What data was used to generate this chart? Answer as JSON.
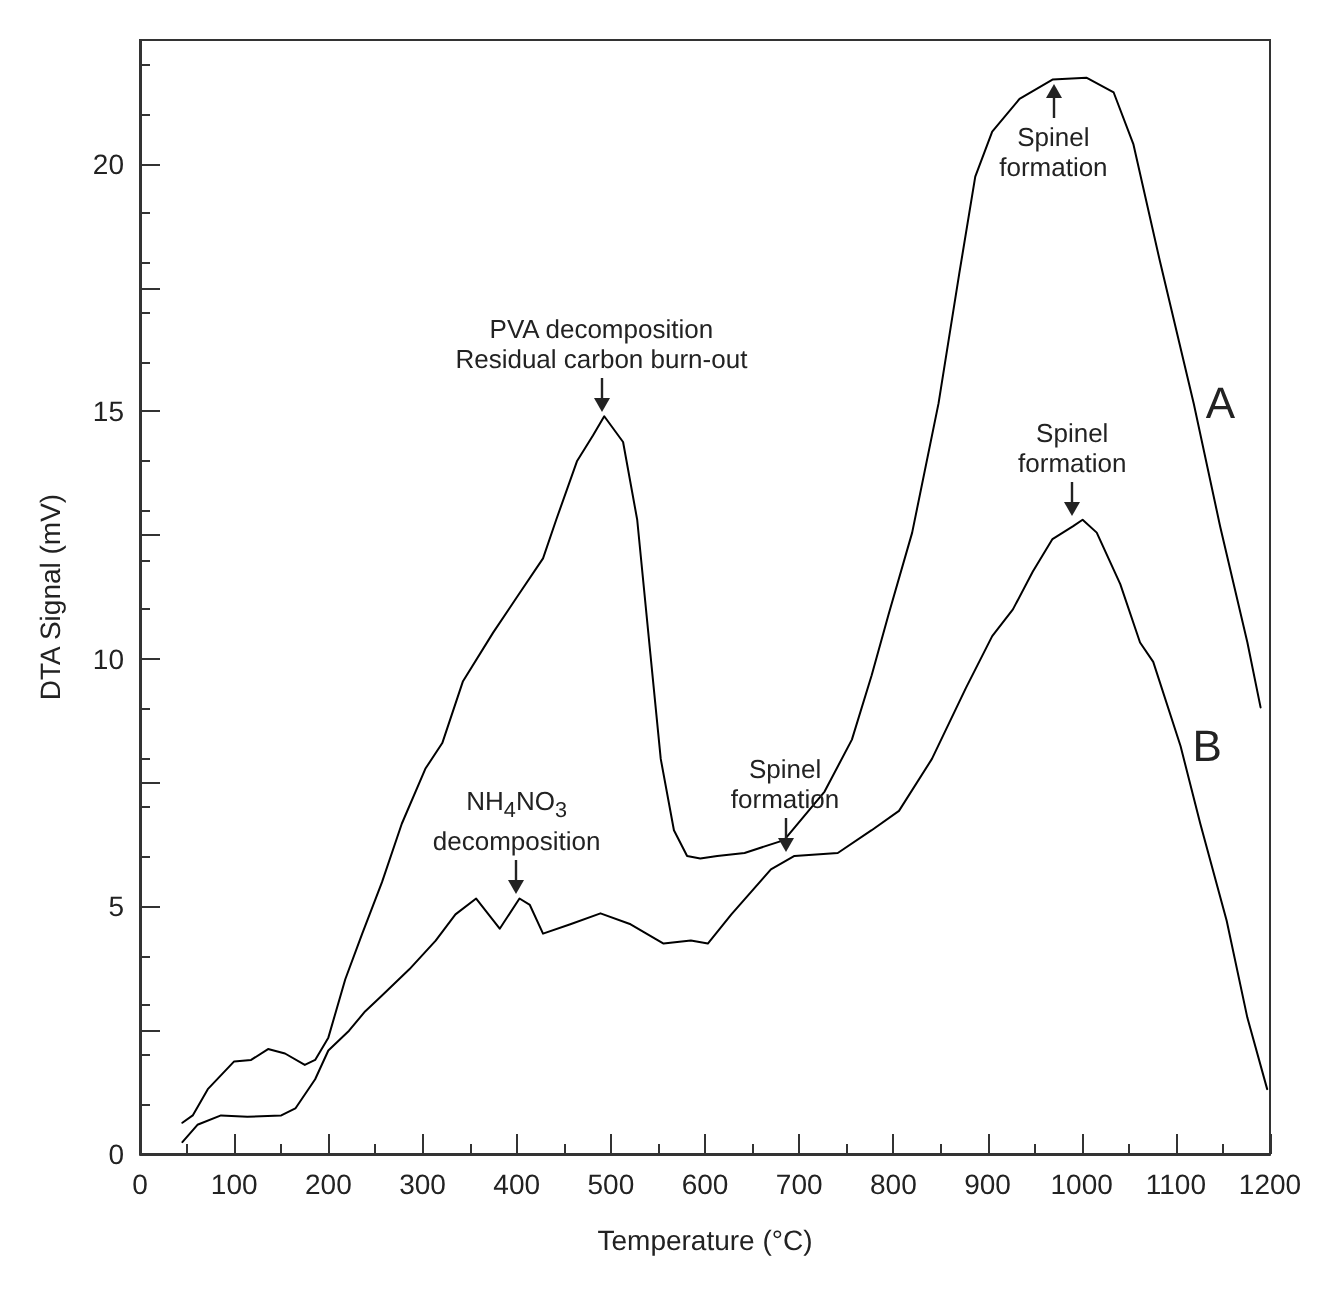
{
  "chart_data": {
    "type": "line",
    "xlabel": "Temperature (°C)",
    "ylabel": "DTA Signal (mV)",
    "xlim": [
      0,
      1200
    ],
    "xticks": [
      0,
      100,
      200,
      300,
      400,
      500,
      600,
      700,
      800,
      900,
      1000,
      1100,
      1200
    ],
    "ylim": [
      0,
      22.5
    ],
    "yticks": [
      0,
      {
        "value": 2.5,
        "label": null
      },
      5,
      {
        "value": 7.5,
        "label": null
      },
      10,
      {
        "value": 12.5,
        "label": null
      },
      15,
      {
        "value": 17.5,
        "label": null
      },
      20
    ],
    "grid": false,
    "legend": false,
    "marker": "none",
    "line_style": "solid",
    "series": [
      {
        "name": "A",
        "color": "#000000",
        "x": [
          45,
          56,
          72,
          100,
          118,
          136,
          154,
          175,
          186,
          200,
          218,
          236,
          257,
          278,
          303,
          321,
          343,
          375,
          400,
          428,
          442,
          464,
          481,
          493,
          513,
          528,
          542,
          553,
          567,
          581,
          595,
          613,
          642,
          684,
          727,
          756,
          777,
          795,
          820,
          848,
          870,
          887,
          905,
          934,
          969,
          1005,
          1034,
          1055,
          1083,
          1119,
          1147,
          1176,
          1190
        ],
        "values": [
          0.63,
          0.78,
          1.31,
          1.87,
          1.9,
          2.12,
          2.03,
          1.8,
          1.9,
          2.35,
          3.53,
          4.45,
          5.49,
          6.67,
          7.78,
          8.3,
          9.55,
          10.53,
          11.24,
          12.03,
          12.81,
          13.99,
          14.51,
          14.9,
          14.38,
          12.81,
          10.1,
          7.98,
          6.54,
          6.02,
          5.97,
          6.02,
          6.08,
          6.34,
          7.32,
          8.37,
          9.67,
          10.9,
          12.55,
          15.16,
          17.78,
          19.74,
          20.65,
          21.31,
          21.7,
          21.74,
          21.44,
          20.39,
          18.04,
          15.16,
          12.68,
          10.33,
          9.02
        ]
      },
      {
        "name": "B",
        "color": "#000000",
        "x": [
          45,
          61,
          86,
          114,
          150,
          165,
          186,
          200,
          222,
          239,
          257,
          286,
          314,
          335,
          357,
          382,
          403,
          414,
          428,
          457,
          489,
          521,
          556,
          585,
          603,
          628,
          670,
          695,
          741,
          777,
          806,
          841,
          877,
          905,
          927,
          948,
          969,
          991,
          1001,
          1016,
          1041,
          1062,
          1076,
          1105,
          1126,
          1154,
          1176,
          1197
        ],
        "values": [
          0.24,
          0.59,
          0.78,
          0.75,
          0.78,
          0.92,
          1.51,
          2.09,
          2.49,
          2.88,
          3.2,
          3.73,
          4.31,
          4.84,
          5.16,
          4.55,
          5.16,
          5.03,
          4.45,
          4.64,
          4.86,
          4.64,
          4.25,
          4.31,
          4.25,
          4.84,
          5.75,
          6.02,
          6.08,
          6.54,
          6.93,
          7.98,
          9.41,
          10.46,
          11.0,
          11.76,
          12.42,
          12.68,
          12.81,
          12.55,
          11.51,
          10.33,
          9.94,
          8.24,
          6.67,
          4.71,
          2.75,
          1.31
        ]
      }
    ],
    "annotations": [
      {
        "text": "PVA decomposition\nResidual carbon burn-out",
        "x": 490,
        "y": 14.9
      },
      {
        "text": "Spinel\nformation",
        "x": 970,
        "y": 21.7
      },
      {
        "text": "Spinel\nformation",
        "x": 990,
        "y": 12.8
      },
      {
        "text": "NH$_{4}$NO$_{3}$\ndecomposition",
        "x": 400,
        "y": 5.16
      },
      {
        "text": "Spinel\nformation",
        "x": 685,
        "y": 6.0
      }
    ]
  }
}
